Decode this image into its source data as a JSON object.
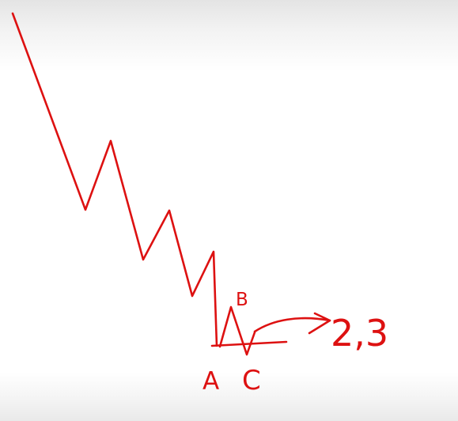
{
  "colors": {
    "ink": "#dd1111",
    "background": "#ffffff"
  },
  "labels": {
    "a": "A",
    "b": "B",
    "c": "C",
    "value": "2,3"
  }
}
